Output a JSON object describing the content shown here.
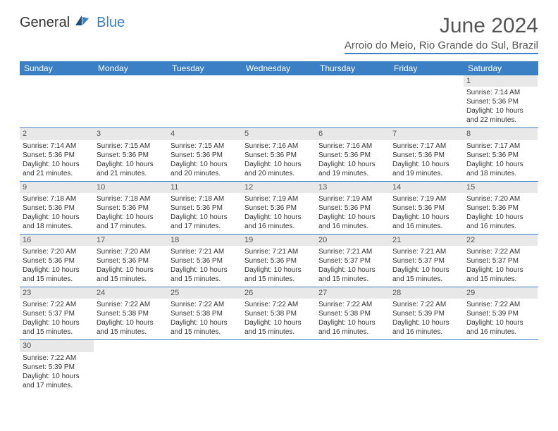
{
  "logo": {
    "text1": "General",
    "text2": "Blue",
    "color_dark": "#333333",
    "color_blue": "#3b7fc4"
  },
  "header": {
    "title": "June 2024",
    "subtitle": "Arroio do Meio, Rio Grande do Sul, Brazil"
  },
  "style": {
    "header_bg": "#3b7fc4",
    "header_text": "#ffffff",
    "daynum_bg": "#e8e8e8",
    "row_border": "#3b7fc4",
    "text_color": "#333333",
    "title_color": "#555555",
    "label_font_size": 10,
    "daynum_font_size": 11,
    "title_font_size": 30,
    "subtitle_font_size": 15
  },
  "day_names": [
    "Sunday",
    "Monday",
    "Tuesday",
    "Wednesday",
    "Thursday",
    "Friday",
    "Saturday"
  ],
  "weeks": [
    [
      null,
      null,
      null,
      null,
      null,
      null,
      {
        "n": "1",
        "sunrise": "Sunrise: 7:14 AM",
        "sunset": "Sunset: 5:36 PM",
        "day1": "Daylight: 10 hours",
        "day2": "and 22 minutes."
      }
    ],
    [
      {
        "n": "2",
        "sunrise": "Sunrise: 7:14 AM",
        "sunset": "Sunset: 5:36 PM",
        "day1": "Daylight: 10 hours",
        "day2": "and 21 minutes."
      },
      {
        "n": "3",
        "sunrise": "Sunrise: 7:15 AM",
        "sunset": "Sunset: 5:36 PM",
        "day1": "Daylight: 10 hours",
        "day2": "and 21 minutes."
      },
      {
        "n": "4",
        "sunrise": "Sunrise: 7:15 AM",
        "sunset": "Sunset: 5:36 PM",
        "day1": "Daylight: 10 hours",
        "day2": "and 20 minutes."
      },
      {
        "n": "5",
        "sunrise": "Sunrise: 7:16 AM",
        "sunset": "Sunset: 5:36 PM",
        "day1": "Daylight: 10 hours",
        "day2": "and 20 minutes."
      },
      {
        "n": "6",
        "sunrise": "Sunrise: 7:16 AM",
        "sunset": "Sunset: 5:36 PM",
        "day1": "Daylight: 10 hours",
        "day2": "and 19 minutes."
      },
      {
        "n": "7",
        "sunrise": "Sunrise: 7:17 AM",
        "sunset": "Sunset: 5:36 PM",
        "day1": "Daylight: 10 hours",
        "day2": "and 19 minutes."
      },
      {
        "n": "8",
        "sunrise": "Sunrise: 7:17 AM",
        "sunset": "Sunset: 5:36 PM",
        "day1": "Daylight: 10 hours",
        "day2": "and 18 minutes."
      }
    ],
    [
      {
        "n": "9",
        "sunrise": "Sunrise: 7:18 AM",
        "sunset": "Sunset: 5:36 PM",
        "day1": "Daylight: 10 hours",
        "day2": "and 18 minutes."
      },
      {
        "n": "10",
        "sunrise": "Sunrise: 7:18 AM",
        "sunset": "Sunset: 5:36 PM",
        "day1": "Daylight: 10 hours",
        "day2": "and 17 minutes."
      },
      {
        "n": "11",
        "sunrise": "Sunrise: 7:18 AM",
        "sunset": "Sunset: 5:36 PM",
        "day1": "Daylight: 10 hours",
        "day2": "and 17 minutes."
      },
      {
        "n": "12",
        "sunrise": "Sunrise: 7:19 AM",
        "sunset": "Sunset: 5:36 PM",
        "day1": "Daylight: 10 hours",
        "day2": "and 16 minutes."
      },
      {
        "n": "13",
        "sunrise": "Sunrise: 7:19 AM",
        "sunset": "Sunset: 5:36 PM",
        "day1": "Daylight: 10 hours",
        "day2": "and 16 minutes."
      },
      {
        "n": "14",
        "sunrise": "Sunrise: 7:19 AM",
        "sunset": "Sunset: 5:36 PM",
        "day1": "Daylight: 10 hours",
        "day2": "and 16 minutes."
      },
      {
        "n": "15",
        "sunrise": "Sunrise: 7:20 AM",
        "sunset": "Sunset: 5:36 PM",
        "day1": "Daylight: 10 hours",
        "day2": "and 16 minutes."
      }
    ],
    [
      {
        "n": "16",
        "sunrise": "Sunrise: 7:20 AM",
        "sunset": "Sunset: 5:36 PM",
        "day1": "Daylight: 10 hours",
        "day2": "and 15 minutes."
      },
      {
        "n": "17",
        "sunrise": "Sunrise: 7:20 AM",
        "sunset": "Sunset: 5:36 PM",
        "day1": "Daylight: 10 hours",
        "day2": "and 15 minutes."
      },
      {
        "n": "18",
        "sunrise": "Sunrise: 7:21 AM",
        "sunset": "Sunset: 5:36 PM",
        "day1": "Daylight: 10 hours",
        "day2": "and 15 minutes."
      },
      {
        "n": "19",
        "sunrise": "Sunrise: 7:21 AM",
        "sunset": "Sunset: 5:36 PM",
        "day1": "Daylight: 10 hours",
        "day2": "and 15 minutes."
      },
      {
        "n": "20",
        "sunrise": "Sunrise: 7:21 AM",
        "sunset": "Sunset: 5:37 PM",
        "day1": "Daylight: 10 hours",
        "day2": "and 15 minutes."
      },
      {
        "n": "21",
        "sunrise": "Sunrise: 7:21 AM",
        "sunset": "Sunset: 5:37 PM",
        "day1": "Daylight: 10 hours",
        "day2": "and 15 minutes."
      },
      {
        "n": "22",
        "sunrise": "Sunrise: 7:22 AM",
        "sunset": "Sunset: 5:37 PM",
        "day1": "Daylight: 10 hours",
        "day2": "and 15 minutes."
      }
    ],
    [
      {
        "n": "23",
        "sunrise": "Sunrise: 7:22 AM",
        "sunset": "Sunset: 5:37 PM",
        "day1": "Daylight: 10 hours",
        "day2": "and 15 minutes."
      },
      {
        "n": "24",
        "sunrise": "Sunrise: 7:22 AM",
        "sunset": "Sunset: 5:38 PM",
        "day1": "Daylight: 10 hours",
        "day2": "and 15 minutes."
      },
      {
        "n": "25",
        "sunrise": "Sunrise: 7:22 AM",
        "sunset": "Sunset: 5:38 PM",
        "day1": "Daylight: 10 hours",
        "day2": "and 15 minutes."
      },
      {
        "n": "26",
        "sunrise": "Sunrise: 7:22 AM",
        "sunset": "Sunset: 5:38 PM",
        "day1": "Daylight: 10 hours",
        "day2": "and 15 minutes."
      },
      {
        "n": "27",
        "sunrise": "Sunrise: 7:22 AM",
        "sunset": "Sunset: 5:38 PM",
        "day1": "Daylight: 10 hours",
        "day2": "and 16 minutes."
      },
      {
        "n": "28",
        "sunrise": "Sunrise: 7:22 AM",
        "sunset": "Sunset: 5:39 PM",
        "day1": "Daylight: 10 hours",
        "day2": "and 16 minutes."
      },
      {
        "n": "29",
        "sunrise": "Sunrise: 7:22 AM",
        "sunset": "Sunset: 5:39 PM",
        "day1": "Daylight: 10 hours",
        "day2": "and 16 minutes."
      }
    ],
    [
      {
        "n": "30",
        "sunrise": "Sunrise: 7:22 AM",
        "sunset": "Sunset: 5:39 PM",
        "day1": "Daylight: 10 hours",
        "day2": "and 17 minutes."
      },
      null,
      null,
      null,
      null,
      null,
      null
    ]
  ]
}
